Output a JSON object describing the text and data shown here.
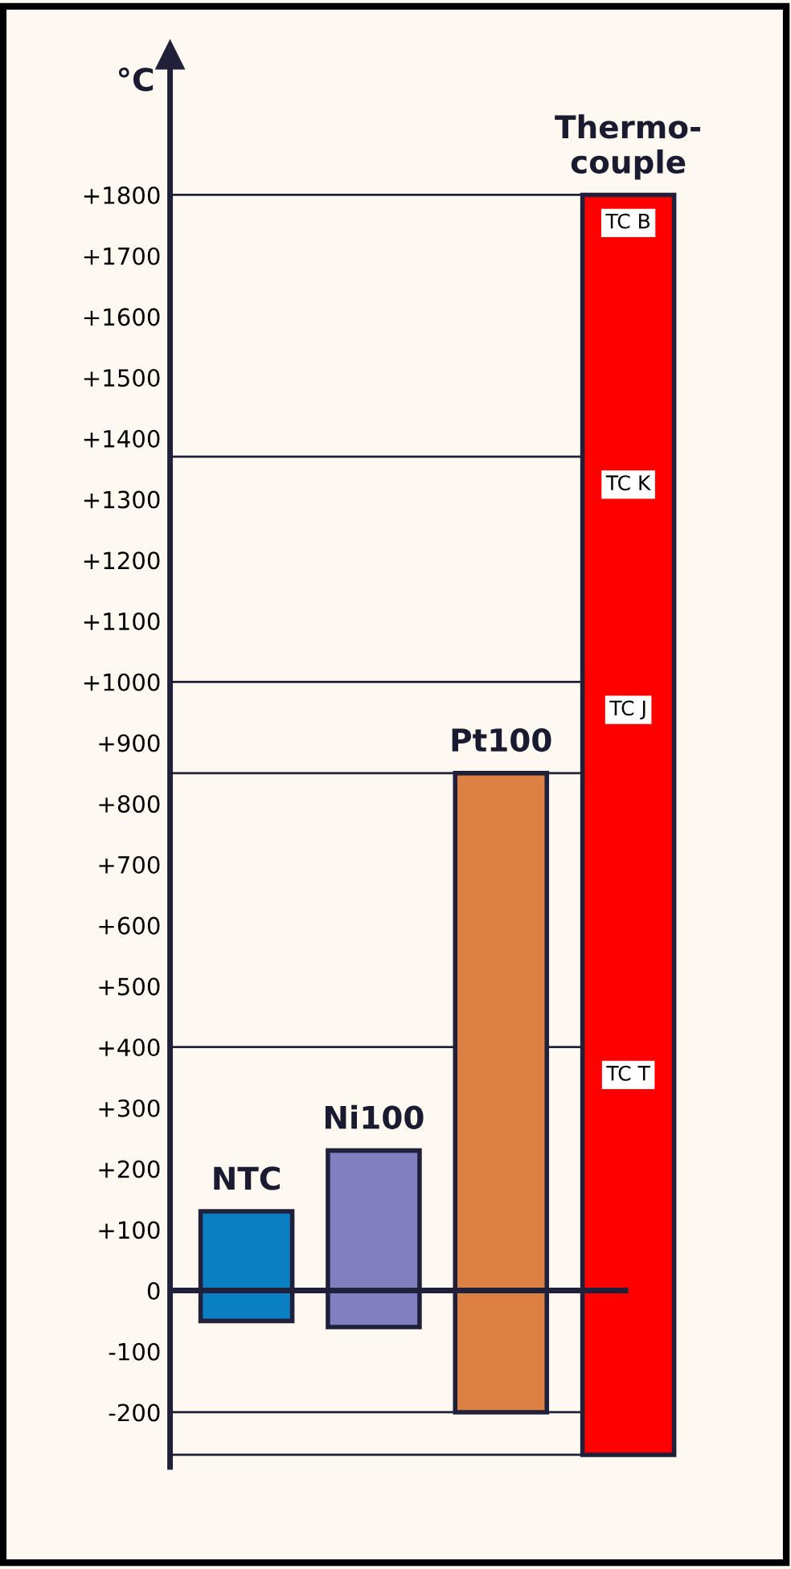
{
  "chart_data": {
    "type": "bar",
    "ylabel": "°C",
    "categories": [
      "NTC",
      "Ni100",
      "Pt100",
      "Thermo-\ncouple"
    ],
    "values": [
      180,
      290,
      1050,
      2070
    ],
    "base": [
      -50,
      -60,
      -200,
      -270
    ],
    "colors": [
      "#0a7fc2",
      "#8080c0",
      "#dc8044",
      "#ff0000"
    ],
    "ylim": [
      -290,
      2030
    ],
    "yticks": [
      {
        "value": -200,
        "label": "-200"
      },
      {
        "value": -100,
        "label": "-100"
      },
      {
        "value": 0,
        "label": "0"
      },
      {
        "value": 100,
        "label": "+100"
      },
      {
        "value": 200,
        "label": "+200"
      },
      {
        "value": 300,
        "label": "+300"
      },
      {
        "value": 400,
        "label": "+400"
      },
      {
        "value": 500,
        "label": "+500"
      },
      {
        "value": 600,
        "label": "+600"
      },
      {
        "value": 700,
        "label": "+700"
      },
      {
        "value": 800,
        "label": "+800"
      },
      {
        "value": 900,
        "label": "+900"
      },
      {
        "value": 1000,
        "label": "+1000"
      },
      {
        "value": 1100,
        "label": "+1100"
      },
      {
        "value": 1200,
        "label": "+1200"
      },
      {
        "value": 1300,
        "label": "+1300"
      },
      {
        "value": 1400,
        "label": "+1400"
      },
      {
        "value": 1500,
        "label": "+1500"
      },
      {
        "value": 1600,
        "label": "+1600"
      },
      {
        "value": 1700,
        "label": "+1700"
      },
      {
        "value": 1800,
        "label": "+1800"
      }
    ],
    "ref_lines": [
      {
        "axis": "y",
        "value": 1800,
        "label": "TC B"
      },
      {
        "axis": "y",
        "value": 1370,
        "label": "TC K"
      },
      {
        "axis": "y",
        "value": 1000,
        "label": "TC J"
      },
      {
        "axis": "y",
        "value": 850,
        "label": null
      },
      {
        "axis": "y",
        "value": 400,
        "label": "TC T"
      },
      {
        "axis": "y",
        "value": 0,
        "label": null
      },
      {
        "axis": "y",
        "value": -200,
        "label": null
      },
      {
        "axis": "y",
        "value": -270,
        "label": null
      }
    ],
    "grid": false,
    "legend": false
  }
}
